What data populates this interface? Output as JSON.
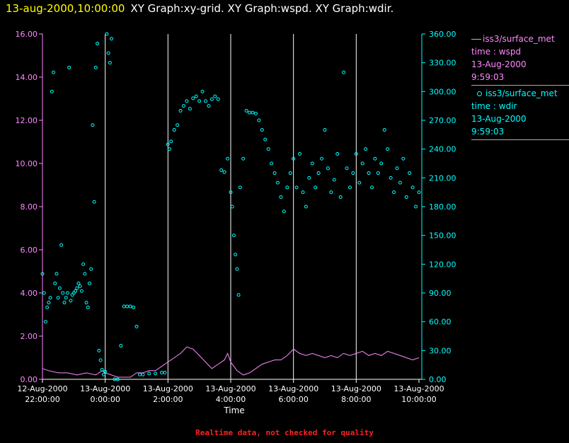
{
  "title": {
    "date": "13-aug-2000,10:00:00",
    "graphs": "XY Graph:xy-grid.  XY Graph:wspd.  XY Graph:wdir."
  },
  "legend": {
    "wspd": {
      "name": "iss3/surface_met",
      "var": "time : wspd",
      "date": "13-Aug-2000",
      "time": "9:59:03"
    },
    "wdir": {
      "name": "iss3/surface_met",
      "var": "time : wdir",
      "date": "13-Aug-2000",
      "time": "9:59:03"
    }
  },
  "footer": "Realtime data, not checked for quality",
  "chart_data": {
    "type": "scatter",
    "xlabel": "Time",
    "x_ticks": [
      {
        "date": "12-Aug-2000",
        "time": "22:00:00",
        "hours": -2
      },
      {
        "date": "13-Aug-2000",
        "time": "0:00:00",
        "hours": 0
      },
      {
        "date": "13-Aug-2000",
        "time": "2:00:00",
        "hours": 2
      },
      {
        "date": "13-Aug-2000",
        "time": "4:00:00",
        "hours": 4
      },
      {
        "date": "13-Aug-2000",
        "time": "6:00:00",
        "hours": 6
      },
      {
        "date": "13-Aug-2000",
        "time": "8:00:00",
        "hours": 8
      },
      {
        "date": "13-Aug-2000",
        "time": "10:00:00",
        "hours": 10
      }
    ],
    "xlim_hours": [
      -2,
      10
    ],
    "y_left": {
      "label": "wspd",
      "ticks": [
        "0.00",
        "2.00",
        "4.00",
        "6.00",
        "8.00",
        "10.00",
        "12.00",
        "14.00",
        "16.00"
      ],
      "lim": [
        0,
        16
      ],
      "color": "#ff88ff"
    },
    "y_right": {
      "label": "wdir",
      "ticks": [
        "0.00",
        "30.00",
        "60.00",
        "90.00",
        "120.00",
        "150.00",
        "180.00",
        "210.00",
        "240.00",
        "270.00",
        "300.00",
        "330.00",
        "360.00"
      ],
      "lim": [
        0,
        360
      ],
      "color": "#00ffff"
    },
    "grid": "vertical lines at x ticks",
    "series": [
      {
        "name": "wspd",
        "style": "line",
        "color": "#ff88ff",
        "points": [
          [
            -2.0,
            0.5
          ],
          [
            -1.8,
            0.4
          ],
          [
            -1.5,
            0.3
          ],
          [
            -1.2,
            0.3
          ],
          [
            -0.9,
            0.2
          ],
          [
            -0.6,
            0.3
          ],
          [
            -0.3,
            0.2
          ],
          [
            -0.1,
            0.4
          ],
          [
            0.0,
            0.3
          ],
          [
            0.2,
            0.2
          ],
          [
            0.4,
            0.1
          ],
          [
            0.6,
            0.1
          ],
          [
            0.8,
            0.1
          ],
          [
            1.0,
            0.3
          ],
          [
            1.2,
            0.3
          ],
          [
            1.4,
            0.4
          ],
          [
            1.6,
            0.4
          ],
          [
            1.8,
            0.6
          ],
          [
            2.0,
            0.8
          ],
          [
            2.2,
            1.0
          ],
          [
            2.4,
            1.2
          ],
          [
            2.6,
            1.5
          ],
          [
            2.8,
            1.4
          ],
          [
            3.0,
            1.1
          ],
          [
            3.2,
            0.8
          ],
          [
            3.4,
            0.5
          ],
          [
            3.6,
            0.7
          ],
          [
            3.8,
            0.9
          ],
          [
            3.9,
            1.2
          ],
          [
            4.0,
            0.8
          ],
          [
            4.2,
            0.4
          ],
          [
            4.4,
            0.2
          ],
          [
            4.6,
            0.3
          ],
          [
            4.8,
            0.5
          ],
          [
            5.0,
            0.7
          ],
          [
            5.2,
            0.8
          ],
          [
            5.4,
            0.9
          ],
          [
            5.6,
            0.9
          ],
          [
            5.8,
            1.1
          ],
          [
            6.0,
            1.4
          ],
          [
            6.2,
            1.2
          ],
          [
            6.4,
            1.1
          ],
          [
            6.6,
            1.2
          ],
          [
            6.8,
            1.1
          ],
          [
            7.0,
            1.0
          ],
          [
            7.2,
            1.1
          ],
          [
            7.4,
            1.0
          ],
          [
            7.6,
            1.2
          ],
          [
            7.8,
            1.1
          ],
          [
            8.0,
            1.2
          ],
          [
            8.2,
            1.3
          ],
          [
            8.4,
            1.1
          ],
          [
            8.6,
            1.2
          ],
          [
            8.8,
            1.1
          ],
          [
            9.0,
            1.3
          ],
          [
            9.2,
            1.2
          ],
          [
            9.4,
            1.1
          ],
          [
            9.6,
            1.0
          ],
          [
            9.8,
            0.9
          ],
          [
            10.0,
            1.0
          ]
        ]
      },
      {
        "name": "wdir",
        "style": "scatter",
        "color": "#00ffff",
        "points": [
          [
            -2.0,
            110
          ],
          [
            -1.95,
            90
          ],
          [
            -1.9,
            60
          ],
          [
            -1.85,
            75
          ],
          [
            -1.8,
            80
          ],
          [
            -1.75,
            85
          ],
          [
            -1.7,
            300
          ],
          [
            -1.65,
            320
          ],
          [
            -1.6,
            100
          ],
          [
            -1.55,
            110
          ],
          [
            -1.5,
            85
          ],
          [
            -1.45,
            95
          ],
          [
            -1.4,
            140
          ],
          [
            -1.35,
            90
          ],
          [
            -1.3,
            80
          ],
          [
            -1.25,
            85
          ],
          [
            -1.2,
            90
          ],
          [
            -1.15,
            325
          ],
          [
            -1.1,
            82
          ],
          [
            -1.05,
            88
          ],
          [
            -1.0,
            90
          ],
          [
            -0.95,
            92
          ],
          [
            -0.9,
            95
          ],
          [
            -0.85,
            100
          ],
          [
            -0.8,
            97
          ],
          [
            -0.75,
            92
          ],
          [
            -0.7,
            120
          ],
          [
            -0.65,
            110
          ],
          [
            -0.6,
            80
          ],
          [
            -0.55,
            75
          ],
          [
            -0.5,
            100
          ],
          [
            -0.45,
            115
          ],
          [
            -0.4,
            265
          ],
          [
            -0.35,
            185
          ],
          [
            -0.3,
            325
          ],
          [
            -0.25,
            350
          ],
          [
            -0.2,
            30
          ],
          [
            -0.15,
            20
          ],
          [
            -0.1,
            10
          ],
          [
            -0.05,
            5
          ],
          [
            0.0,
            8
          ],
          [
            0.05,
            360
          ],
          [
            0.1,
            340
          ],
          [
            0.15,
            330
          ],
          [
            0.2,
            355
          ],
          [
            0.3,
            0
          ],
          [
            0.4,
            0
          ],
          [
            0.5,
            35
          ],
          [
            0.6,
            76
          ],
          [
            0.7,
            76
          ],
          [
            0.8,
            76
          ],
          [
            0.9,
            75
          ],
          [
            1.0,
            55
          ],
          [
            1.1,
            5
          ],
          [
            1.2,
            5
          ],
          [
            1.4,
            6
          ],
          [
            1.6,
            6
          ],
          [
            1.8,
            7
          ],
          [
            1.9,
            7
          ],
          [
            2.0,
            245
          ],
          [
            2.05,
            240
          ],
          [
            2.1,
            248
          ],
          [
            2.2,
            260
          ],
          [
            2.3,
            265
          ],
          [
            2.4,
            280
          ],
          [
            2.5,
            285
          ],
          [
            2.6,
            290
          ],
          [
            2.7,
            282
          ],
          [
            2.8,
            293
          ],
          [
            2.9,
            295
          ],
          [
            3.0,
            290
          ],
          [
            3.1,
            300
          ],
          [
            3.2,
            290
          ],
          [
            3.3,
            285
          ],
          [
            3.4,
            292
          ],
          [
            3.5,
            295
          ],
          [
            3.6,
            292
          ],
          [
            3.7,
            218
          ],
          [
            3.8,
            216
          ],
          [
            3.9,
            230
          ],
          [
            4.0,
            195
          ],
          [
            4.05,
            180
          ],
          [
            4.1,
            150
          ],
          [
            4.15,
            130
          ],
          [
            4.2,
            115
          ],
          [
            4.25,
            88
          ],
          [
            4.3,
            200
          ],
          [
            4.4,
            230
          ],
          [
            4.5,
            280
          ],
          [
            4.6,
            278
          ],
          [
            4.7,
            278
          ],
          [
            4.8,
            277
          ],
          [
            4.9,
            270
          ],
          [
            5.0,
            260
          ],
          [
            5.1,
            250
          ],
          [
            5.2,
            240
          ],
          [
            5.3,
            225
          ],
          [
            5.4,
            215
          ],
          [
            5.5,
            205
          ],
          [
            5.6,
            190
          ],
          [
            5.7,
            175
          ],
          [
            5.8,
            200
          ],
          [
            5.9,
            215
          ],
          [
            6.0,
            230
          ],
          [
            6.1,
            200
          ],
          [
            6.2,
            235
          ],
          [
            6.3,
            195
          ],
          [
            6.4,
            180
          ],
          [
            6.5,
            210
          ],
          [
            6.6,
            225
          ],
          [
            6.7,
            200
          ],
          [
            6.8,
            215
          ],
          [
            6.9,
            230
          ],
          [
            7.0,
            260
          ],
          [
            7.1,
            220
          ],
          [
            7.2,
            195
          ],
          [
            7.3,
            208
          ],
          [
            7.4,
            235
          ],
          [
            7.5,
            190
          ],
          [
            7.6,
            320
          ],
          [
            7.7,
            220
          ],
          [
            7.8,
            200
          ],
          [
            7.9,
            215
          ],
          [
            8.0,
            235
          ],
          [
            8.1,
            205
          ],
          [
            8.2,
            225
          ],
          [
            8.3,
            240
          ],
          [
            8.4,
            215
          ],
          [
            8.5,
            200
          ],
          [
            8.6,
            230
          ],
          [
            8.7,
            215
          ],
          [
            8.8,
            225
          ],
          [
            8.9,
            260
          ],
          [
            9.0,
            240
          ],
          [
            9.1,
            210
          ],
          [
            9.2,
            195
          ],
          [
            9.3,
            220
          ],
          [
            9.4,
            205
          ],
          [
            9.5,
            230
          ],
          [
            9.6,
            190
          ],
          [
            9.7,
            215
          ],
          [
            9.8,
            200
          ],
          [
            9.9,
            180
          ],
          [
            10.0,
            195
          ]
        ]
      }
    ]
  }
}
